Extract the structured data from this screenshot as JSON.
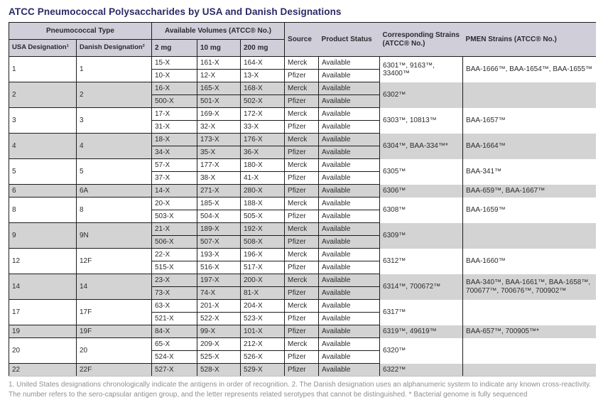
{
  "title": "ATCC Pneumococcal Polysaccharides by USA and Danish Designations",
  "colors": {
    "title_text": "#2a2a66",
    "header_bg": "#cfced9",
    "row_shaded_bg": "#d3d3d3",
    "border": "#1c1c1c",
    "footnote_text": "#8f8f8f"
  },
  "table": {
    "header": {
      "pneumococcal_type": "Pneumococcal Type",
      "usa": "USA Designation¹",
      "danish": "Danish Designation²",
      "volumes": "Available Volumes (ATCC® No.)",
      "v2": "2 mg",
      "v10": "10 mg",
      "v200": "200 mg",
      "source": "Source",
      "status": "Product Status",
      "strains": "Corresponding Strains (ATCC® No.)",
      "pmen": "PMEN Strains (ATCC® No.)"
    },
    "groups": [
      {
        "usa": "1",
        "danish": "1",
        "shaded": false,
        "strains": "6301™, 9163™, 33400™",
        "pmen": "BAA-1666™, BAA-1654™, BAA-1655™",
        "rows": [
          [
            "15-X",
            "161-X",
            "164-X",
            "Merck",
            "Available"
          ],
          [
            "10-X",
            "12-X",
            "13-X",
            "Pfizer",
            "Available"
          ]
        ]
      },
      {
        "usa": "2",
        "danish": "2",
        "shaded": true,
        "strains": "6302™",
        "pmen": "",
        "rows": [
          [
            "16-X",
            "165-X",
            "168-X",
            "Merck",
            "Available"
          ],
          [
            "500-X",
            "501-X",
            "502-X",
            "Pfizer",
            "Available"
          ]
        ]
      },
      {
        "usa": "3",
        "danish": "3",
        "shaded": false,
        "strains": "6303™, 10813™",
        "pmen": "BAA-1657™",
        "rows": [
          [
            "17-X",
            "169-X",
            "172-X",
            "Merck",
            "Available"
          ],
          [
            "31-X",
            "32-X",
            "33-X",
            "Pfizer",
            "Available"
          ]
        ]
      },
      {
        "usa": "4",
        "danish": "4",
        "shaded": true,
        "strains": "6304™, BAA-334™*",
        "pmen": "BAA-1664™",
        "rows": [
          [
            "18-X",
            "173-X",
            "176-X",
            "Merck",
            "Available"
          ],
          [
            "34-X",
            "35-X",
            "36-X",
            "Pfizer",
            "Available"
          ]
        ]
      },
      {
        "usa": "5",
        "danish": "5",
        "shaded": false,
        "strains": "6305™",
        "pmen": "BAA-341™",
        "rows": [
          [
            "57-X",
            "177-X",
            "180-X",
            "Merck",
            "Available"
          ],
          [
            "37-X",
            "38-X",
            "41-X",
            "Pfizer",
            "Available"
          ]
        ]
      },
      {
        "usa": "6",
        "danish": "6A",
        "shaded": true,
        "strains": "6306™",
        "pmen": "BAA-659™, BAA-1667™",
        "rows": [
          [
            "14-X",
            "271-X",
            "280-X",
            "Pfizer",
            "Available"
          ]
        ]
      },
      {
        "usa": "8",
        "danish": "8",
        "shaded": false,
        "strains": "6308™",
        "pmen": "BAA-1659™",
        "rows": [
          [
            "20-X",
            "185-X",
            "188-X",
            "Merck",
            "Available"
          ],
          [
            "503-X",
            "504-X",
            "505-X",
            "Pfizer",
            "Available"
          ]
        ]
      },
      {
        "usa": "9",
        "danish": "9N",
        "shaded": true,
        "strains": "6309™",
        "pmen": "",
        "rows": [
          [
            "21-X",
            "189-X",
            "192-X",
            "Merck",
            "Available"
          ],
          [
            "506-X",
            "507-X",
            "508-X",
            "Pfizer",
            "Available"
          ]
        ]
      },
      {
        "usa": "12",
        "danish": "12F",
        "shaded": false,
        "strains": "6312™",
        "pmen": "BAA-1660™",
        "rows": [
          [
            "22-X",
            "193-X",
            "196-X",
            "Merck",
            "Available"
          ],
          [
            "515-X",
            "516-X",
            "517-X",
            "Pfizer",
            "Available"
          ]
        ]
      },
      {
        "usa": "14",
        "danish": "14",
        "shaded": true,
        "strains": "6314™, 700672™",
        "pmen": "BAA-340™, BAA-1661™, BAA-1658™, 700677™, 700676™, 700902™",
        "rows": [
          [
            "23-X",
            "197-X",
            "200-X",
            "Merck",
            "Available"
          ],
          [
            "73-X",
            "74-X",
            "81-X",
            "Pfizer",
            "Available"
          ]
        ]
      },
      {
        "usa": "17",
        "danish": "17F",
        "shaded": false,
        "strains": "6317™",
        "pmen": "",
        "rows": [
          [
            "63-X",
            "201-X",
            "204-X",
            "Merck",
            "Available"
          ],
          [
            "521-X",
            "522-X",
            "523-X",
            "Pfizer",
            "Available"
          ]
        ]
      },
      {
        "usa": "19",
        "danish": "19F",
        "shaded": true,
        "strains": "6319™, 49619™",
        "pmen": "BAA-657™, 700905™*",
        "rows": [
          [
            "84-X",
            "99-X",
            "101-X",
            "Pfizer",
            "Available"
          ]
        ]
      },
      {
        "usa": "20",
        "danish": "20",
        "shaded": false,
        "strains": "6320™",
        "pmen": "",
        "rows": [
          [
            "65-X",
            "209-X",
            "212-X",
            "Merck",
            "Available"
          ],
          [
            "524-X",
            "525-X",
            "526-X",
            "Pfizer",
            "Available"
          ]
        ]
      },
      {
        "usa": "22",
        "danish": "22F",
        "shaded": true,
        "strains": "6322™",
        "pmen": "",
        "rows": [
          [
            "527-X",
            "528-X",
            "529-X",
            "Pfizer",
            "Available"
          ]
        ]
      }
    ]
  },
  "footnote": "1. United States designations chronologically indicate the antigens in order of recognition. 2. The Danish designation uses an alphanumeric system to indicate any known cross-reactivity. The number refers to the sero-capsular antigen group, and the letter represents related serotypes that cannot be distinguished. * Bacterial genome is fully sequenced"
}
